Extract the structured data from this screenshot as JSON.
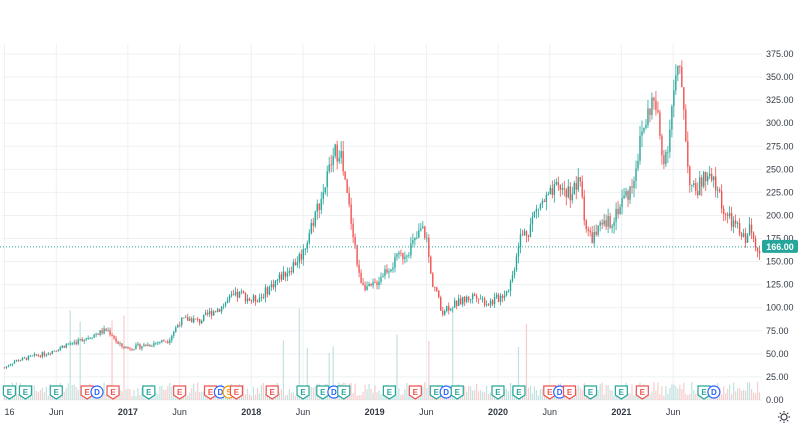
{
  "chart_data": {
    "type": "candlestick",
    "current_price": 166.0,
    "current_price_label": "166.00",
    "y_ticks": [
      0,
      25,
      50,
      75,
      100,
      125,
      150,
      175,
      200,
      225,
      250,
      275,
      300,
      325,
      350,
      375
    ],
    "y_tick_labels": [
      "0.00",
      "25.00",
      "50.00",
      "75.00",
      "100.00",
      "125.00",
      "150.00",
      "175.00",
      "200.00",
      "225.00",
      "250.00",
      "275.00",
      "300.00",
      "325.00",
      "350.00",
      "375.00"
    ],
    "ylim": [
      0,
      375
    ],
    "x_ticks": [
      {
        "label": "16",
        "year": false,
        "t": 2016.0
      },
      {
        "label": "Jun",
        "year": false,
        "t": 2016.42
      },
      {
        "label": "2017",
        "year": true,
        "t": 2017.0
      },
      {
        "label": "Jun",
        "year": false,
        "t": 2017.42
      },
      {
        "label": "2018",
        "year": true,
        "t": 2018.0
      },
      {
        "label": "Jun",
        "year": false,
        "t": 2018.42
      },
      {
        "label": "2019",
        "year": true,
        "t": 2019.0
      },
      {
        "label": "Jun",
        "year": false,
        "t": 2019.42
      },
      {
        "label": "2020",
        "year": true,
        "t": 2020.0
      },
      {
        "label": "Jun",
        "year": false,
        "t": 2020.42
      },
      {
        "label": "2021",
        "year": true,
        "t": 2021.0
      },
      {
        "label": "Jun",
        "year": false,
        "t": 2021.42
      }
    ],
    "price_path": [
      [
        2016.0,
        35
      ],
      [
        2016.08,
        42
      ],
      [
        2016.17,
        45
      ],
      [
        2016.25,
        48
      ],
      [
        2016.33,
        50
      ],
      [
        2016.42,
        55
      ],
      [
        2016.5,
        60
      ],
      [
        2016.58,
        63
      ],
      [
        2016.67,
        68
      ],
      [
        2016.75,
        72
      ],
      [
        2016.83,
        76
      ],
      [
        2016.88,
        70
      ],
      [
        2016.92,
        60
      ],
      [
        2017.0,
        56
      ],
      [
        2017.08,
        58
      ],
      [
        2017.17,
        60
      ],
      [
        2017.25,
        63
      ],
      [
        2017.33,
        65
      ],
      [
        2017.42,
        85
      ],
      [
        2017.5,
        88
      ],
      [
        2017.58,
        85
      ],
      [
        2017.67,
        95
      ],
      [
        2017.75,
        100
      ],
      [
        2017.83,
        110
      ],
      [
        2017.92,
        115
      ],
      [
        2018.0,
        108
      ],
      [
        2018.08,
        112
      ],
      [
        2018.17,
        125
      ],
      [
        2018.25,
        135
      ],
      [
        2018.33,
        145
      ],
      [
        2018.42,
        160
      ],
      [
        2018.5,
        195
      ],
      [
        2018.58,
        225
      ],
      [
        2018.67,
        265
      ],
      [
        2018.72,
        275
      ],
      [
        2018.75,
        240
      ],
      [
        2018.83,
        180
      ],
      [
        2018.87,
        135
      ],
      [
        2018.92,
        125
      ],
      [
        2018.96,
        120
      ],
      [
        2019.0,
        125
      ],
      [
        2019.08,
        140
      ],
      [
        2019.17,
        150
      ],
      [
        2019.25,
        160
      ],
      [
        2019.33,
        172
      ],
      [
        2019.38,
        185
      ],
      [
        2019.42,
        178
      ],
      [
        2019.46,
        130
      ],
      [
        2019.5,
        120
      ],
      [
        2019.54,
        95
      ],
      [
        2019.58,
        100
      ],
      [
        2019.67,
        105
      ],
      [
        2019.75,
        110
      ],
      [
        2019.83,
        115
      ],
      [
        2019.88,
        108
      ],
      [
        2019.92,
        105
      ],
      [
        2020.0,
        110
      ],
      [
        2020.08,
        120
      ],
      [
        2020.12,
        135
      ],
      [
        2020.17,
        175
      ],
      [
        2020.25,
        185
      ],
      [
        2020.29,
        200
      ],
      [
        2020.33,
        210
      ],
      [
        2020.42,
        220
      ],
      [
        2020.5,
        230
      ],
      [
        2020.58,
        225
      ],
      [
        2020.67,
        235
      ],
      [
        2020.71,
        190
      ],
      [
        2020.75,
        175
      ],
      [
        2020.83,
        185
      ],
      [
        2020.92,
        195
      ],
      [
        2021.0,
        215
      ],
      [
        2021.08,
        230
      ],
      [
        2021.17,
        290
      ],
      [
        2021.25,
        325
      ],
      [
        2021.29,
        310
      ],
      [
        2021.33,
        265
      ],
      [
        2021.37,
        270
      ],
      [
        2021.42,
        330
      ],
      [
        2021.46,
        355
      ],
      [
        2021.5,
        335
      ],
      [
        2021.54,
        250
      ],
      [
        2021.58,
        225
      ],
      [
        2021.62,
        230
      ],
      [
        2021.67,
        240
      ],
      [
        2021.75,
        235
      ],
      [
        2021.79,
        225
      ],
      [
        2021.83,
        205
      ],
      [
        2021.87,
        195
      ],
      [
        2021.92,
        190
      ],
      [
        2021.96,
        180
      ],
      [
        2022.0,
        175
      ],
      [
        2022.04,
        185
      ],
      [
        2022.08,
        172
      ],
      [
        2022.12,
        166
      ]
    ],
    "events": [
      {
        "t": 2016.04,
        "letter": "E",
        "color": "#26a69a"
      },
      {
        "t": 2016.17,
        "letter": "E",
        "color": "#26a69a"
      },
      {
        "t": 2016.42,
        "letter": "E",
        "color": "#26a69a"
      },
      {
        "t": 2016.67,
        "letter": "E",
        "color": "#ef5350"
      },
      {
        "t": 2016.75,
        "letter": "D",
        "color": "#2962ff"
      },
      {
        "t": 2016.88,
        "letter": "E",
        "color": "#ef5350"
      },
      {
        "t": 2017.17,
        "letter": "E",
        "color": "#26a69a"
      },
      {
        "t": 2017.42,
        "letter": "E",
        "color": "#ef5350"
      },
      {
        "t": 2017.67,
        "letter": "E",
        "color": "#ef5350"
      },
      {
        "t": 2017.75,
        "letter": "D",
        "color": "#2962ff"
      },
      {
        "t": 2017.82,
        "letter": "S",
        "color": "#f59f00"
      },
      {
        "t": 2017.88,
        "letter": "E",
        "color": "#ef5350"
      },
      {
        "t": 2018.17,
        "letter": "E",
        "color": "#ef5350"
      },
      {
        "t": 2018.42,
        "letter": "E",
        "color": "#26a69a"
      },
      {
        "t": 2018.58,
        "letter": "E",
        "color": "#26a69a"
      },
      {
        "t": 2018.67,
        "letter": "D",
        "color": "#2962ff"
      },
      {
        "t": 2018.75,
        "letter": "E",
        "color": "#26a69a"
      },
      {
        "t": 2019.12,
        "letter": "E",
        "color": "#26a69a"
      },
      {
        "t": 2019.33,
        "letter": "E",
        "color": "#ef5350"
      },
      {
        "t": 2019.5,
        "letter": "E",
        "color": "#26a69a"
      },
      {
        "t": 2019.58,
        "letter": "D",
        "color": "#2962ff"
      },
      {
        "t": 2019.67,
        "letter": "E",
        "color": "#26a69a"
      },
      {
        "t": 2020.0,
        "letter": "E",
        "color": "#26a69a"
      },
      {
        "t": 2020.17,
        "letter": "E",
        "color": "#26a69a"
      },
      {
        "t": 2020.42,
        "letter": "E",
        "color": "#ef5350"
      },
      {
        "t": 2020.5,
        "letter": "D",
        "color": "#2962ff"
      },
      {
        "t": 2020.58,
        "letter": "E",
        "color": "#ef5350"
      },
      {
        "t": 2020.75,
        "letter": "E",
        "color": "#26a69a"
      },
      {
        "t": 2021.0,
        "letter": "E",
        "color": "#26a69a"
      },
      {
        "t": 2021.17,
        "letter": "E",
        "color": "#ef5350"
      },
      {
        "t": 2021.67,
        "letter": "E",
        "color": "#26a69a"
      },
      {
        "t": 2021.75,
        "letter": "D",
        "color": "#2962ff"
      }
    ]
  },
  "colors": {
    "up": "#26a69a",
    "down": "#ef5350",
    "price_line": "#26a69a",
    "volume": "#c8ccd2"
  },
  "icons": {
    "settings": "gear-icon"
  }
}
